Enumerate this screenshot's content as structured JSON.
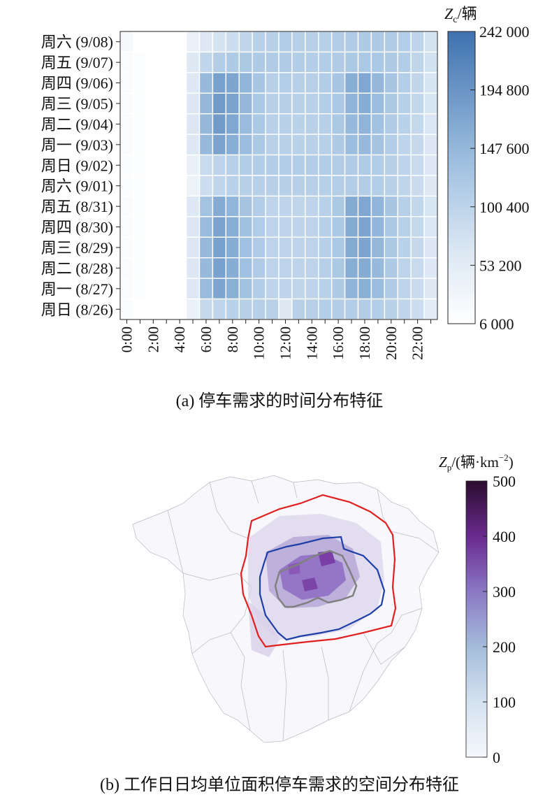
{
  "chart_data": [
    {
      "type": "heatmap",
      "caption": "(a) 停车需求的时间分布特征",
      "colorbar_title_var": "Z",
      "colorbar_title_sub": "c",
      "colorbar_title_unit": "/辆",
      "colorbar_range": [
        6000,
        242000
      ],
      "colorbar_ticks": [
        {
          "value": 242000,
          "label": "242 000"
        },
        {
          "value": 194800,
          "label": "194 800"
        },
        {
          "value": 147600,
          "label": "147 600"
        },
        {
          "value": 100400,
          "label": "100 400"
        },
        {
          "value": 53200,
          "label": "53 200"
        },
        {
          "value": 6000,
          "label": "6 000"
        }
      ],
      "x_labels": [
        "0:00",
        "2:00",
        "4:00",
        "6:00",
        "8:00",
        "10:00",
        "12:00",
        "14:00",
        "16:00",
        "18:00",
        "20:00",
        "22:00"
      ],
      "x_hours": [
        0,
        1,
        2,
        3,
        4,
        5,
        6,
        7,
        8,
        9,
        10,
        11,
        12,
        13,
        14,
        15,
        16,
        17,
        18,
        19,
        20,
        21,
        22,
        23
      ],
      "y_labels": [
        "周六 (9/08)",
        "周五 (9/07)",
        "周四 (9/06)",
        "周三 (9/05)",
        "周二 (9/04)",
        "周一 (9/03)",
        "周日 (9/02)",
        "周六 (9/01)",
        "周五 (8/31)",
        "周四 (8/30)",
        "周三 (8/29)",
        "周二 (8/28)",
        "周一 (8/27)",
        "周日 (8/26)"
      ],
      "values": [
        [
          20000,
          6000,
          6000,
          6000,
          6000,
          40000,
          62000,
          72000,
          84000,
          95000,
          105000,
          108000,
          112000,
          108000,
          108000,
          108000,
          112000,
          115000,
          118000,
          118000,
          115000,
          110000,
          100000,
          72000
        ],
        [
          16000,
          12000,
          6000,
          6000,
          6000,
          60000,
          95000,
          112000,
          118000,
          120000,
          118000,
          115000,
          115000,
          112000,
          110000,
          112000,
          115000,
          120000,
          122000,
          122000,
          118000,
          112000,
          98000,
          74000
        ],
        [
          16000,
          12000,
          6000,
          6000,
          6000,
          62000,
          145000,
          178000,
          172000,
          150000,
          125000,
          108000,
          110000,
          108000,
          108000,
          112000,
          125000,
          160000,
          170000,
          148000,
          125000,
          110000,
          96000,
          70000
        ],
        [
          16000,
          12000,
          6000,
          6000,
          6000,
          64000,
          148000,
          188000,
          175000,
          148000,
          122000,
          108000,
          108000,
          105000,
          106000,
          110000,
          122000,
          152000,
          162000,
          140000,
          120000,
          108000,
          94000,
          68000
        ],
        [
          16000,
          12000,
          6000,
          6000,
          6000,
          64000,
          148000,
          186000,
          170000,
          142000,
          120000,
          106000,
          106000,
          104000,
          105000,
          108000,
          120000,
          145000,
          152000,
          132000,
          115000,
          104000,
          92000,
          66000
        ],
        [
          16000,
          12000,
          6000,
          6000,
          6000,
          62000,
          145000,
          175000,
          160000,
          140000,
          120000,
          106000,
          106000,
          104000,
          105000,
          108000,
          118000,
          140000,
          145000,
          128000,
          112000,
          100000,
          90000,
          64000
        ],
        [
          14000,
          12000,
          6000,
          6000,
          6000,
          42000,
          88000,
          100000,
          108000,
          112000,
          112000,
          112000,
          112000,
          112000,
          112000,
          112000,
          112000,
          115000,
          116000,
          112000,
          108000,
          100000,
          88000,
          62000
        ],
        [
          14000,
          12000,
          6000,
          6000,
          6000,
          38000,
          84000,
          96000,
          104000,
          108000,
          108000,
          108000,
          108000,
          108000,
          108000,
          108000,
          110000,
          112000,
          112000,
          110000,
          105000,
          98000,
          86000,
          60000
        ],
        [
          16000,
          12000,
          6000,
          6000,
          6000,
          62000,
          130000,
          165000,
          150000,
          128000,
          112000,
          100000,
          100000,
          98000,
          100000,
          106000,
          120000,
          165000,
          170000,
          150000,
          125000,
          108000,
          94000,
          68000
        ],
        [
          16000,
          12000,
          6000,
          6000,
          6000,
          64000,
          142000,
          175000,
          160000,
          135000,
          114000,
          102000,
          102000,
          100000,
          102000,
          108000,
          122000,
          165000,
          172000,
          150000,
          122000,
          106000,
          92000,
          66000
        ],
        [
          16000,
          12000,
          6000,
          6000,
          6000,
          64000,
          145000,
          178000,
          162000,
          136000,
          115000,
          102000,
          102000,
          100000,
          102000,
          108000,
          122000,
          165000,
          172000,
          148000,
          120000,
          104000,
          90000,
          64000
        ],
        [
          16000,
          12000,
          6000,
          6000,
          6000,
          64000,
          145000,
          178000,
          162000,
          136000,
          115000,
          102000,
          102000,
          100000,
          102000,
          108000,
          120000,
          160000,
          165000,
          145000,
          118000,
          102000,
          88000,
          62000
        ],
        [
          16000,
          12000,
          6000,
          6000,
          6000,
          62000,
          142000,
          172000,
          158000,
          132000,
          112000,
          100000,
          100000,
          98000,
          100000,
          106000,
          118000,
          152000,
          158000,
          140000,
          115000,
          100000,
          86000,
          60000
        ],
        [
          14000,
          6000,
          6000,
          6000,
          6000,
          40000,
          90000,
          98000,
          104000,
          108000,
          108000,
          106000,
          60000,
          106000,
          108000,
          110000,
          112000,
          112000,
          112000,
          110000,
          104000,
          96000,
          84000,
          56000
        ]
      ]
    },
    {
      "type": "heatmap",
      "subtype": "choropleth_map",
      "caption": "(b) 工作日日均单位面积停车需求的空间分布特征",
      "colorbar_title_var": "Z",
      "colorbar_title_sub": "p",
      "colorbar_title_unit_pre": "/(辆·km",
      "colorbar_title_exp": "−2",
      "colorbar_title_unit_post": ")",
      "colorbar_range": [
        0,
        500
      ],
      "colorbar_ticks": [
        {
          "value": 500,
          "label": "500"
        },
        {
          "value": 400,
          "label": "400"
        },
        {
          "value": 300,
          "label": "300"
        },
        {
          "value": 200,
          "label": "200"
        },
        {
          "value": 100,
          "label": "100"
        },
        {
          "value": 0,
          "label": "0"
        }
      ],
      "ring_colors": {
        "outer": "#e02020",
        "middle": "#1f3fa8",
        "inner": "#808080"
      }
    }
  ]
}
